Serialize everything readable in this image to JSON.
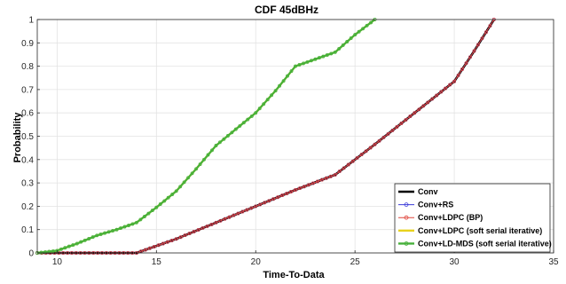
{
  "chart_data": {
    "type": "line",
    "title": "CDF 45dBHz",
    "xlabel": "Time-To-Data",
    "ylabel": "Probability",
    "xlim": [
      9,
      35
    ],
    "ylim": [
      0,
      1
    ],
    "xticks": [
      10,
      15,
      20,
      25,
      30,
      35
    ],
    "yticks": [
      0,
      0.1,
      0.2,
      0.3,
      0.4,
      0.5,
      0.6,
      0.7,
      0.8,
      0.9,
      1
    ],
    "xtick_labels": [
      "10",
      "15",
      "20",
      "25",
      "30",
      "35"
    ],
    "ytick_labels": [
      "0",
      "0.1",
      "0.2",
      "0.3",
      "0.4",
      "0.5",
      "0.6",
      "0.7",
      "0.8",
      "0.9",
      "1"
    ],
    "grid": true,
    "legend_position": "bottom-right",
    "series": [
      {
        "name": "Conv",
        "color": "#000000",
        "marker": "none",
        "points": [
          [
            9,
            0
          ],
          [
            14,
            0
          ],
          [
            16,
            0.06
          ],
          [
            18,
            0.13
          ],
          [
            20,
            0.2
          ],
          [
            22,
            0.27
          ],
          [
            24,
            0.335
          ],
          [
            26,
            0.465
          ],
          [
            28,
            0.6
          ],
          [
            30,
            0.735
          ],
          [
            31,
            0.865
          ],
          [
            32,
            1
          ]
        ]
      },
      {
        "name": "Conv+RS",
        "color": "#3b3bd9",
        "marker": "circle",
        "points": [
          [
            9,
            0
          ],
          [
            14,
            0
          ],
          [
            16,
            0.06
          ],
          [
            18,
            0.13
          ],
          [
            20,
            0.2
          ],
          [
            22,
            0.27
          ],
          [
            24,
            0.335
          ],
          [
            26,
            0.465
          ],
          [
            28,
            0.6
          ],
          [
            30,
            0.735
          ],
          [
            31,
            0.865
          ],
          [
            32,
            1
          ]
        ]
      },
      {
        "name": "Conv+LDPC (BP)",
        "color": "#e0463c",
        "marker": "circle",
        "points": [
          [
            9,
            0
          ],
          [
            14,
            0
          ],
          [
            16,
            0.06
          ],
          [
            18,
            0.13
          ],
          [
            20,
            0.2
          ],
          [
            22,
            0.27
          ],
          [
            24,
            0.335
          ],
          [
            26,
            0.465
          ],
          [
            28,
            0.6
          ],
          [
            30,
            0.735
          ],
          [
            31,
            0.865
          ],
          [
            32,
            1
          ]
        ]
      },
      {
        "name": "Conv+LDPC (soft serial iterative)",
        "color": "#e8d21c",
        "marker": "none",
        "points": [
          [
            9,
            0
          ],
          [
            10,
            0.01
          ],
          [
            11,
            0.04
          ],
          [
            12,
            0.075
          ],
          [
            13,
            0.1
          ],
          [
            14,
            0.13
          ],
          [
            15,
            0.195
          ],
          [
            16,
            0.265
          ],
          [
            17,
            0.36
          ],
          [
            18,
            0.46
          ],
          [
            19,
            0.53
          ],
          [
            20,
            0.6
          ],
          [
            21,
            0.695
          ],
          [
            22,
            0.8
          ],
          [
            23,
            0.83
          ],
          [
            24,
            0.86
          ],
          [
            25,
            0.935
          ],
          [
            26,
            1
          ]
        ]
      },
      {
        "name": "Conv+LD-MDS (soft serial iterative)",
        "color": "#46b03a",
        "marker": "circle",
        "points": [
          [
            9,
            0
          ],
          [
            10,
            0.01
          ],
          [
            11,
            0.04
          ],
          [
            12,
            0.075
          ],
          [
            13,
            0.1
          ],
          [
            14,
            0.13
          ],
          [
            15,
            0.195
          ],
          [
            16,
            0.265
          ],
          [
            17,
            0.36
          ],
          [
            18,
            0.46
          ],
          [
            19,
            0.53
          ],
          [
            20,
            0.6
          ],
          [
            21,
            0.695
          ],
          [
            22,
            0.8
          ],
          [
            23,
            0.83
          ],
          [
            24,
            0.86
          ],
          [
            25,
            0.935
          ],
          [
            26,
            1
          ]
        ]
      }
    ]
  }
}
